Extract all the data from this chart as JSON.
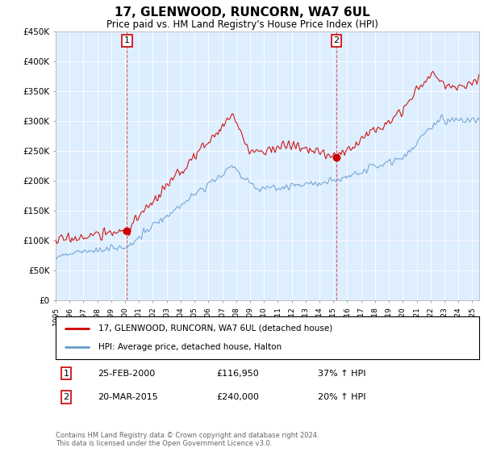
{
  "title": "17, GLENWOOD, RUNCORN, WA7 6UL",
  "subtitle": "Price paid vs. HM Land Registry's House Price Index (HPI)",
  "legend_label1": "17, GLENWOOD, RUNCORN, WA7 6UL (detached house)",
  "legend_label2": "HPI: Average price, detached house, Halton",
  "annotation1_num": "1",
  "annotation1_date": "25-FEB-2000",
  "annotation1_price": "£116,950",
  "annotation1_hpi": "37% ↑ HPI",
  "annotation2_num": "2",
  "annotation2_date": "20-MAR-2015",
  "annotation2_price": "£240,000",
  "annotation2_hpi": "20% ↑ HPI",
  "footnote": "Contains HM Land Registry data © Crown copyright and database right 2024.\nThis data is licensed under the Open Government Licence v3.0.",
  "line1_color": "#cc0000",
  "line2_color": "#6699cc",
  "chart_bg": "#ddeeff",
  "vline_color": "#cc0000",
  "annotation_box_color": "#cc0000",
  "ylim": [
    0,
    450000
  ],
  "yticks": [
    0,
    50000,
    100000,
    150000,
    200000,
    250000,
    300000,
    350000,
    400000,
    450000
  ],
  "ytick_labels": [
    "£0",
    "£50K",
    "£100K",
    "£150K",
    "£200K",
    "£250K",
    "£300K",
    "£350K",
    "£400K",
    "£450K"
  ],
  "sale1_year": 2000.14,
  "sale1_price": 116950,
  "sale2_year": 2015.22,
  "sale2_price": 240000
}
